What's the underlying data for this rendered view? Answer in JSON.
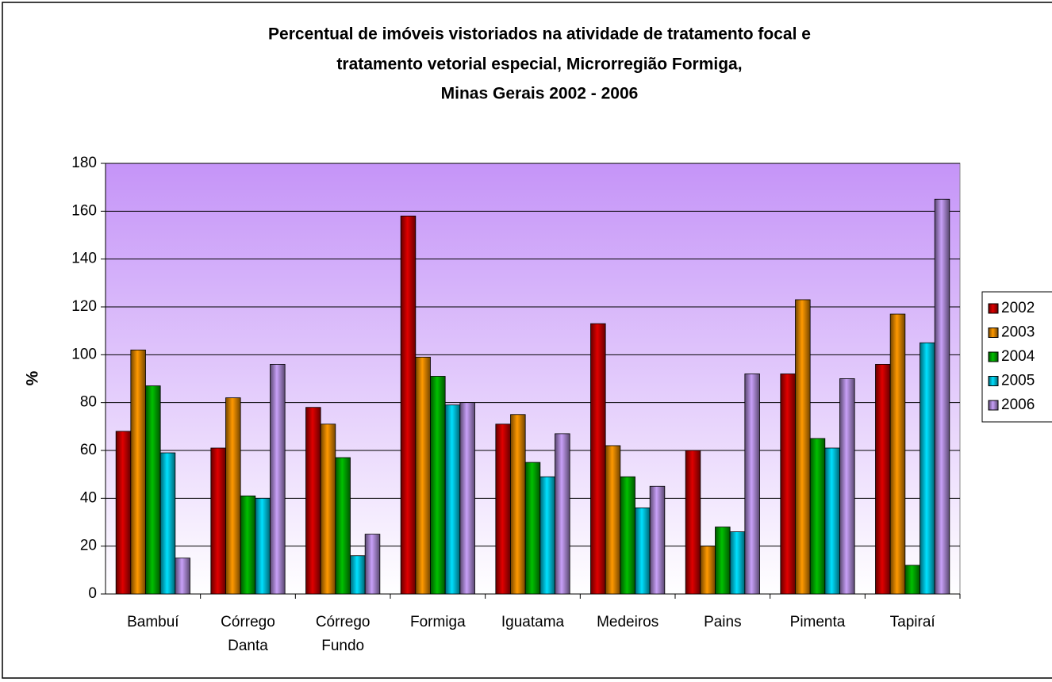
{
  "chart_data": {
    "type": "bar",
    "title": [
      "Percentual de imóveis vistoriados na atividade de tratamento focal e",
      "tratamento vetorial especial, Microrregião Formiga,",
      "Minas Gerais 2002 - 2006"
    ],
    "y_label": "%",
    "categories": [
      "Bambuí",
      "Córrego Danta",
      "Córrego Fundo",
      "Formiga",
      "Iguatama",
      "Medeiros",
      "Pains",
      "Pimenta",
      "Tapiraí"
    ],
    "series": [
      {
        "name": "2002",
        "color": "#e00000",
        "values": [
          68,
          61,
          78,
          158,
          71,
          113,
          60,
          92,
          96
        ]
      },
      {
        "name": "2003",
        "color": "#ff9900",
        "values": [
          102,
          82,
          71,
          99,
          75,
          62,
          20,
          123,
          117
        ]
      },
      {
        "name": "2004",
        "color": "#00c000",
        "values": [
          87,
          41,
          57,
          91,
          55,
          49,
          28,
          65,
          12
        ]
      },
      {
        "name": "2005",
        "color": "#00e0ff",
        "values": [
          59,
          40,
          16,
          79,
          49,
          36,
          26,
          61,
          105
        ]
      },
      {
        "name": "2006",
        "color": "#c8a0f8",
        "values": [
          15,
          96,
          25,
          80,
          67,
          45,
          92,
          90,
          165
        ]
      }
    ],
    "ylim": [
      0,
      180
    ],
    "yticks": [
      0,
      20,
      40,
      60,
      80,
      100,
      120,
      140,
      160,
      180
    ],
    "grid": true,
    "legend": "right"
  }
}
